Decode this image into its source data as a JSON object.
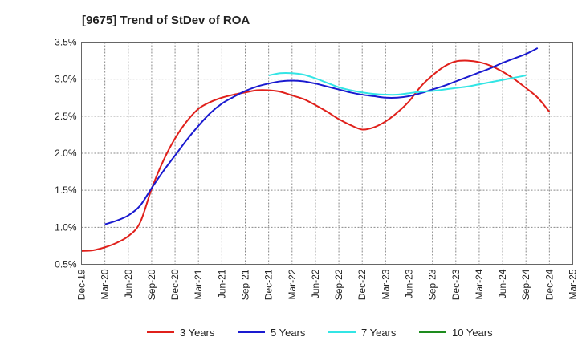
{
  "chart_data": {
    "type": "line",
    "title": "[9675]  Trend of StDev of ROA",
    "xlabel": "",
    "ylabel": "",
    "ylim": [
      0.5,
      3.5
    ],
    "y_ticks": [
      "0.5%",
      "1.0%",
      "1.5%",
      "2.0%",
      "2.5%",
      "3.0%",
      "3.5%"
    ],
    "y_tick_values": [
      0.5,
      1.0,
      1.5,
      2.0,
      2.5,
      3.0,
      3.5
    ],
    "x_ticks": [
      "Dec-19",
      "Mar-20",
      "Jun-20",
      "Sep-20",
      "Dec-20",
      "Mar-21",
      "Jun-21",
      "Sep-21",
      "Dec-21",
      "Mar-22",
      "Jun-22",
      "Sep-22",
      "Dec-22",
      "Mar-23",
      "Jun-23",
      "Sep-23",
      "Dec-23",
      "Mar-24",
      "Jun-24",
      "Sep-24",
      "Dec-24",
      "Mar-25"
    ],
    "grid": true,
    "legend_position": "bottom",
    "series": [
      {
        "name": "3 Years",
        "color": "#e0201b",
        "points": [
          [
            0,
            0.68
          ],
          [
            0.5,
            0.69
          ],
          [
            1,
            0.73
          ],
          [
            1.5,
            0.79
          ],
          [
            2,
            0.88
          ],
          [
            2.5,
            1.06
          ],
          [
            3,
            1.52
          ],
          [
            3.5,
            1.9
          ],
          [
            4,
            2.2
          ],
          [
            4.5,
            2.43
          ],
          [
            5,
            2.6
          ],
          [
            5.5,
            2.69
          ],
          [
            6,
            2.75
          ],
          [
            6.5,
            2.79
          ],
          [
            7,
            2.82
          ],
          [
            7.5,
            2.85
          ],
          [
            8,
            2.85
          ],
          [
            8.5,
            2.83
          ],
          [
            9,
            2.78
          ],
          [
            9.5,
            2.73
          ],
          [
            10,
            2.65
          ],
          [
            10.5,
            2.56
          ],
          [
            11,
            2.46
          ],
          [
            11.5,
            2.38
          ],
          [
            12,
            2.32
          ],
          [
            12.5,
            2.35
          ],
          [
            13,
            2.43
          ],
          [
            13.5,
            2.55
          ],
          [
            14,
            2.7
          ],
          [
            14.5,
            2.9
          ],
          [
            15,
            3.05
          ],
          [
            15.5,
            3.17
          ],
          [
            16,
            3.24
          ],
          [
            16.5,
            3.25
          ],
          [
            17,
            3.23
          ],
          [
            17.5,
            3.18
          ],
          [
            18,
            3.1
          ],
          [
            18.5,
            3.0
          ],
          [
            19,
            2.88
          ],
          [
            19.5,
            2.75
          ],
          [
            20,
            2.56
          ]
        ]
      },
      {
        "name": "5 Years",
        "color": "#1a1ad0",
        "points": [
          [
            1,
            1.04
          ],
          [
            1.5,
            1.09
          ],
          [
            2,
            1.16
          ],
          [
            2.5,
            1.29
          ],
          [
            3,
            1.53
          ],
          [
            3.5,
            1.76
          ],
          [
            4,
            1.97
          ],
          [
            4.5,
            2.18
          ],
          [
            5,
            2.37
          ],
          [
            5.5,
            2.54
          ],
          [
            6,
            2.67
          ],
          [
            6.5,
            2.76
          ],
          [
            7,
            2.84
          ],
          [
            7.5,
            2.9
          ],
          [
            8,
            2.94
          ],
          [
            8.5,
            2.97
          ],
          [
            9,
            2.98
          ],
          [
            9.5,
            2.97
          ],
          [
            10,
            2.94
          ],
          [
            10.5,
            2.9
          ],
          [
            11,
            2.86
          ],
          [
            11.5,
            2.82
          ],
          [
            12,
            2.79
          ],
          [
            12.5,
            2.77
          ],
          [
            13,
            2.75
          ],
          [
            13.5,
            2.75
          ],
          [
            14,
            2.77
          ],
          [
            14.5,
            2.81
          ],
          [
            15,
            2.86
          ],
          [
            15.5,
            2.91
          ],
          [
            16,
            2.97
          ],
          [
            16.5,
            3.03
          ],
          [
            17,
            3.09
          ],
          [
            17.5,
            3.15
          ],
          [
            18,
            3.22
          ],
          [
            18.5,
            3.28
          ],
          [
            19,
            3.34
          ],
          [
            19.5,
            3.42
          ]
        ]
      },
      {
        "name": "7 Years",
        "color": "#33e5e5",
        "points": [
          [
            8,
            3.05
          ],
          [
            8.5,
            3.08
          ],
          [
            9,
            3.08
          ],
          [
            9.5,
            3.06
          ],
          [
            10,
            3.01
          ],
          [
            10.5,
            2.95
          ],
          [
            11,
            2.89
          ],
          [
            11.5,
            2.85
          ],
          [
            12,
            2.82
          ],
          [
            12.5,
            2.8
          ],
          [
            13,
            2.79
          ],
          [
            13.5,
            2.79
          ],
          [
            14,
            2.81
          ],
          [
            14.5,
            2.83
          ],
          [
            15,
            2.84
          ],
          [
            15.5,
            2.86
          ],
          [
            16,
            2.88
          ],
          [
            16.5,
            2.9
          ],
          [
            17,
            2.93
          ],
          [
            17.5,
            2.96
          ],
          [
            18,
            2.99
          ],
          [
            18.5,
            3.02
          ],
          [
            19,
            3.05
          ]
        ]
      },
      {
        "name": "10 Years",
        "color": "#1e8c1e",
        "points": []
      }
    ]
  }
}
